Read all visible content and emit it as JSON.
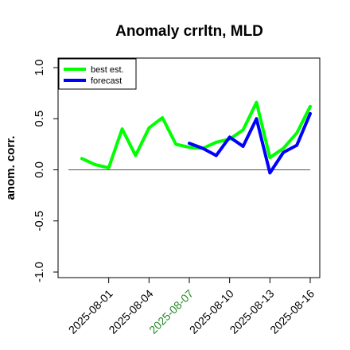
{
  "chart_data": {
    "type": "line",
    "title": "Anomaly crrltn, MLD",
    "ylabel": "anom. corr.",
    "xlabel": "",
    "ylim": [
      -1.0,
      1.0
    ],
    "yticks": [
      -1.0,
      -0.5,
      0.0,
      0.5,
      1.0
    ],
    "ytick_labels": [
      "-1.0",
      "-0.5",
      "0.0",
      "0.5",
      "1.0"
    ],
    "x": [
      "2025-07-29",
      "2025-07-30",
      "2025-07-31",
      "2025-08-01",
      "2025-08-02",
      "2025-08-03",
      "2025-08-04",
      "2025-08-05",
      "2025-08-06",
      "2025-08-07",
      "2025-08-08",
      "2025-08-09",
      "2025-08-10",
      "2025-08-11",
      "2025-08-12",
      "2025-08-13",
      "2025-08-14",
      "2025-08-15",
      "2025-08-16"
    ],
    "xticks": [
      "2025-08-01",
      "2025-08-04",
      "2025-08-07",
      "2025-08-10",
      "2025-08-13",
      "2025-08-16"
    ],
    "xtick_colors": [
      "#000000",
      "#000000",
      "#228b22",
      "#000000",
      "#000000",
      "#000000"
    ],
    "zero_line": 0.0,
    "grid": false,
    "legend_position": "top-left",
    "series": [
      {
        "name": "best est.",
        "color": "#00ff00",
        "x": [
          "2025-07-30",
          "2025-07-31",
          "2025-08-01",
          "2025-08-02",
          "2025-08-03",
          "2025-08-04",
          "2025-08-05",
          "2025-08-06",
          "2025-08-07",
          "2025-08-08",
          "2025-08-09",
          "2025-08-10",
          "2025-08-11",
          "2025-08-12",
          "2025-08-13",
          "2025-08-14",
          "2025-08-15",
          "2025-08-16"
        ],
        "values": [
          0.11,
          0.05,
          0.02,
          0.4,
          0.14,
          0.41,
          0.51,
          0.25,
          0.22,
          0.21,
          0.27,
          0.3,
          0.39,
          0.66,
          0.12,
          0.21,
          0.36,
          0.62
        ]
      },
      {
        "name": "forecast",
        "color": "#0000ff",
        "x": [
          "2025-08-07",
          "2025-08-08",
          "2025-08-09",
          "2025-08-10",
          "2025-08-11",
          "2025-08-12",
          "2025-08-13",
          "2025-08-14",
          "2025-08-15",
          "2025-08-16"
        ],
        "values": [
          0.26,
          0.21,
          0.14,
          0.32,
          0.23,
          0.5,
          -0.03,
          0.17,
          0.24,
          0.55
        ]
      }
    ]
  }
}
